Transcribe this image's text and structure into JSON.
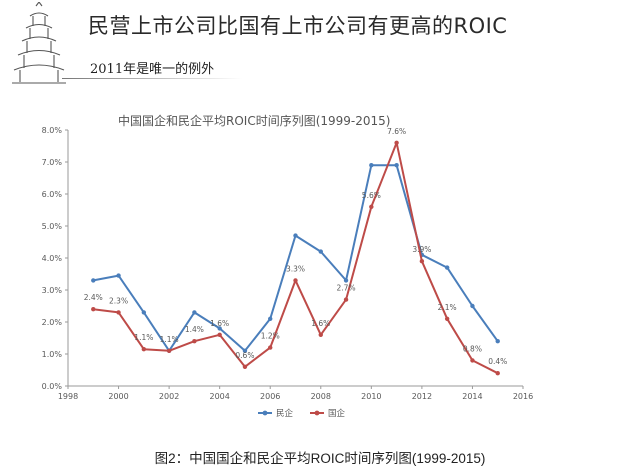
{
  "slide": {
    "title": "民营上市公司比国有上市公司有更高的ROIC",
    "subtitle": "2011年是唯一的例外",
    "caption": "图2：中国国企和民企平均ROIC时间序列图(1999-2015)"
  },
  "colors": {
    "minqi": "#4a7ebb",
    "guoqi": "#be4b48",
    "axis": "#9a9a9a",
    "text": "#595959"
  },
  "chart_data": {
    "type": "line",
    "title": "中国国企和民企平均ROIC时间序列图(1999-2015)",
    "xlabel": "",
    "ylabel": "",
    "xlim": [
      1998,
      2016
    ],
    "ylim": [
      0,
      8
    ],
    "x_ticks": [
      "1998",
      "2000",
      "2002",
      "2004",
      "2006",
      "2008",
      "2010",
      "2012",
      "2014",
      "2016"
    ],
    "y_ticks": [
      "0.0%",
      "1.0%",
      "2.0%",
      "3.0%",
      "4.0%",
      "5.0%",
      "6.0%",
      "7.0%",
      "8.0%"
    ],
    "grid": false,
    "legend_position": "bottom",
    "x": [
      1999,
      2000,
      2001,
      2002,
      2003,
      2004,
      2005,
      2006,
      2007,
      2008,
      2009,
      2010,
      2011,
      2012,
      2013,
      2014,
      2015
    ],
    "series": [
      {
        "name": "民企",
        "values": [
          3.3,
          3.45,
          2.3,
          1.1,
          2.3,
          1.8,
          1.1,
          2.1,
          4.7,
          4.2,
          3.3,
          6.9,
          6.9,
          4.1,
          3.7,
          2.5,
          1.4
        ]
      },
      {
        "name": "国企",
        "values": [
          2.4,
          2.3,
          1.15,
          1.1,
          1.4,
          1.6,
          0.6,
          1.2,
          3.3,
          1.6,
          2.7,
          5.6,
          7.6,
          3.9,
          2.1,
          0.8,
          0.4
        ],
        "data_labels": [
          "2.4%",
          "2.3%",
          "1.1%",
          "1.1%",
          "1.4%",
          "1.6%",
          "0.6%",
          "1.2%",
          "3.3%",
          "1.6%",
          "2.7%",
          "5.6%",
          "7.6%",
          "3.9%",
          "2.1%",
          "0.8%",
          "0.4%"
        ]
      }
    ]
  }
}
